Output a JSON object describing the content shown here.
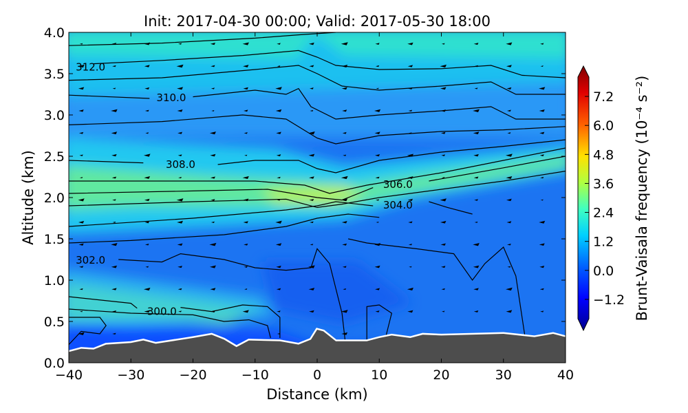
{
  "chart_data": {
    "type": "contourf",
    "title": "Init: 2017-04-30 00:00; Valid: 2017-05-30 18:00",
    "xlabel": "Distance (km)",
    "ylabel": "Altitude (km)",
    "xlim": [
      -40,
      40
    ],
    "ylim": [
      0.0,
      4.0
    ],
    "xticks": [
      "−40",
      "−30",
      "−20",
      "−10",
      "0",
      "10",
      "20",
      "30",
      "40"
    ],
    "xtick_values": [
      -40,
      -30,
      -20,
      -10,
      0,
      10,
      20,
      30,
      40
    ],
    "yticks": [
      "0.0",
      "0.5",
      "1.0",
      "1.5",
      "2.0",
      "2.5",
      "3.0",
      "3.5",
      "4.0"
    ],
    "ytick_values": [
      0,
      0.5,
      1,
      1.5,
      2,
      2.5,
      3,
      3.5,
      4
    ],
    "colorbar": {
      "label": "Brunt-Vaisala frequency (10⁻⁴ s⁻²)",
      "range": [
        -2.0,
        8.0
      ],
      "ticks": [
        "7.2",
        "6.0",
        "4.8",
        "3.6",
        "2.4",
        "1.2",
        "0.0",
        "−1.2"
      ],
      "tick_values": [
        7.2,
        6.0,
        4.8,
        3.6,
        2.4,
        1.2,
        0.0,
        -1.2
      ],
      "extend": "both",
      "colormap": "jet"
    },
    "contour_labels": [
      {
        "text": "312.0",
        "x": -36.5,
        "y": 3.58
      },
      {
        "text": "310.0",
        "x": -23.5,
        "y": 3.21
      },
      {
        "text": "308.0",
        "x": -22.0,
        "y": 2.4
      },
      {
        "text": "306.0",
        "x": 13.0,
        "y": 2.16
      },
      {
        "text": "304.0",
        "x": 13.0,
        "y": 1.91
      },
      {
        "text": "302.0",
        "x": -36.5,
        "y": 1.24
      },
      {
        "text": "300.0",
        "x": -25.0,
        "y": 0.62
      }
    ],
    "contours": [
      [
        [
          -40,
          3.84
        ],
        [
          -25,
          3.87
        ],
        [
          -10,
          3.93
        ],
        [
          -3,
          3.97
        ],
        [
          3,
          4.0
        ]
      ],
      [
        [
          -36,
          3.62
        ],
        [
          -25,
          3.66
        ],
        [
          -12,
          3.72
        ],
        [
          -3,
          3.78
        ],
        [
          0,
          3.7
        ],
        [
          3,
          3.6
        ],
        [
          10,
          3.55
        ],
        [
          20,
          3.56
        ],
        [
          28,
          3.6
        ],
        [
          33,
          3.48
        ],
        [
          40,
          3.45
        ]
      ],
      [
        [
          -40,
          3.42
        ],
        [
          -25,
          3.45
        ],
        [
          -10,
          3.55
        ],
        [
          -3,
          3.6
        ],
        [
          0,
          3.5
        ],
        [
          4,
          3.35
        ],
        [
          10,
          3.3
        ],
        [
          20,
          3.35
        ],
        [
          28,
          3.4
        ],
        [
          32,
          3.25
        ],
        [
          40,
          3.25
        ]
      ],
      [
        [
          -40,
          3.24
        ],
        [
          -27,
          3.2
        ]
      ],
      [
        [
          -20,
          3.22
        ],
        [
          -10,
          3.3
        ],
        [
          -5,
          3.25
        ],
        [
          -3,
          3.32
        ],
        [
          -1,
          3.1
        ],
        [
          3,
          2.95
        ],
        [
          10,
          3.0
        ],
        [
          20,
          3.05
        ],
        [
          28,
          3.1
        ],
        [
          32,
          2.95
        ],
        [
          40,
          2.95
        ]
      ],
      [
        [
          -40,
          2.88
        ],
        [
          -25,
          2.92
        ],
        [
          -12,
          3.0
        ],
        [
          -5,
          2.95
        ],
        [
          0,
          2.72
        ],
        [
          3,
          2.65
        ],
        [
          10,
          2.75
        ],
        [
          20,
          2.8
        ],
        [
          30,
          2.82
        ],
        [
          40,
          2.86
        ]
      ],
      [
        [
          -40,
          2.45
        ],
        [
          -28,
          2.42
        ]
      ],
      [
        [
          -16,
          2.4
        ],
        [
          -10,
          2.45
        ],
        [
          -3,
          2.45
        ],
        [
          0,
          2.35
        ],
        [
          3,
          2.3
        ],
        [
          10,
          2.45
        ],
        [
          20,
          2.55
        ],
        [
          30,
          2.62
        ],
        [
          40,
          2.7
        ]
      ],
      [
        [
          -40,
          2.2
        ],
        [
          -25,
          2.2
        ],
        [
          -10,
          2.2
        ],
        [
          -2,
          2.15
        ],
        [
          2,
          2.05
        ],
        [
          8,
          2.15
        ],
        [
          20,
          2.3
        ],
        [
          30,
          2.45
        ],
        [
          40,
          2.6
        ]
      ],
      [
        [
          -40,
          2.05
        ],
        [
          -20,
          2.08
        ],
        [
          -8,
          2.1
        ],
        [
          0,
          2.0
        ],
        [
          4,
          1.97
        ],
        [
          9,
          2.12
        ]
      ],
      [
        [
          18,
          2.2
        ],
        [
          30,
          2.36
        ],
        [
          40,
          2.5
        ]
      ],
      [
        [
          -40,
          1.9
        ],
        [
          -20,
          1.95
        ],
        [
          -5,
          1.98
        ],
        [
          0,
          1.88
        ],
        [
          4,
          1.92
        ],
        [
          10,
          2.0
        ],
        [
          20,
          2.1
        ],
        [
          30,
          2.2
        ],
        [
          40,
          2.32
        ]
      ],
      [
        [
          -40,
          1.65
        ],
        [
          -20,
          1.75
        ],
        [
          -5,
          1.85
        ],
        [
          0,
          1.9
        ],
        [
          3,
          1.95
        ],
        [
          9,
          1.9
        ]
      ],
      [
        [
          18,
          1.95
        ],
        [
          21,
          1.88
        ],
        [
          25,
          1.8
        ]
      ],
      [
        [
          -40,
          1.45
        ],
        [
          -30,
          1.48
        ],
        [
          -15,
          1.55
        ],
        [
          -5,
          1.65
        ],
        [
          0,
          1.75
        ],
        [
          5,
          1.8
        ],
        [
          10,
          1.76
        ]
      ],
      [
        [
          -32,
          1.25
        ],
        [
          -25,
          1.22
        ],
        [
          -22,
          1.32
        ],
        [
          -15,
          1.25
        ],
        [
          -10,
          1.15
        ],
        [
          -5,
          1.12
        ],
        [
          -1,
          1.15
        ],
        [
          0,
          1.38
        ],
        [
          2,
          1.2
        ],
        [
          3,
          0.9
        ],
        [
          4,
          0.6
        ],
        [
          4.5,
          0.27
        ]
      ],
      [
        [
          5,
          1.5
        ],
        [
          8,
          1.45
        ],
        [
          16,
          1.38
        ],
        [
          22,
          1.32
        ],
        [
          25,
          1.0
        ],
        [
          27,
          1.2
        ],
        [
          30,
          1.4
        ],
        [
          32,
          1.05
        ],
        [
          33.5,
          0.3
        ]
      ],
      [
        [
          -40,
          0.8
        ],
        [
          -30,
          0.72
        ],
        [
          -29,
          0.66
        ]
      ],
      [
        [
          -22,
          0.67
        ],
        [
          -17,
          0.62
        ],
        [
          -12,
          0.7
        ],
        [
          -8,
          0.68
        ],
        [
          -6,
          0.55
        ],
        [
          -6,
          0.3
        ]
      ],
      [
        [
          -40,
          0.65
        ],
        [
          -30,
          0.6
        ],
        [
          -20,
          0.58
        ],
        [
          -15,
          0.5
        ],
        [
          -11,
          0.52
        ],
        [
          -8,
          0.45
        ],
        [
          -7.5,
          0.3
        ]
      ],
      [
        [
          -40,
          0.55
        ],
        [
          -35,
          0.55
        ],
        [
          -34,
          0.45
        ],
        [
          -35,
          0.35
        ],
        [
          -38,
          0.38
        ],
        [
          -40,
          0.22
        ]
      ],
      [
        [
          8,
          0.27
        ],
        [
          8,
          0.68
        ],
        [
          10,
          0.7
        ],
        [
          12,
          0.6
        ],
        [
          11,
          0.3
        ]
      ]
    ],
    "terrain": [
      [
        -40,
        0.13
      ],
      [
        -38,
        0.17
      ],
      [
        -36,
        0.16
      ],
      [
        -34,
        0.22
      ],
      [
        -30,
        0.24
      ],
      [
        -28,
        0.27
      ],
      [
        -26,
        0.23
      ],
      [
        -20,
        0.3
      ],
      [
        -17,
        0.34
      ],
      [
        -15,
        0.28
      ],
      [
        -13,
        0.19
      ],
      [
        -11,
        0.27
      ],
      [
        -6,
        0.26
      ],
      [
        -3,
        0.22
      ],
      [
        -1,
        0.28
      ],
      [
        0,
        0.4
      ],
      [
        1,
        0.38
      ],
      [
        3,
        0.26
      ],
      [
        8,
        0.26
      ],
      [
        10,
        0.3
      ],
      [
        12,
        0.33
      ],
      [
        15,
        0.3
      ],
      [
        17,
        0.34
      ],
      [
        20,
        0.33
      ],
      [
        30,
        0.35
      ],
      [
        35,
        0.31
      ],
      [
        38,
        0.35
      ],
      [
        40,
        0.31
      ]
    ],
    "colors": {
      "terrain": "#4d4d4d",
      "contour": "#000000"
    }
  }
}
